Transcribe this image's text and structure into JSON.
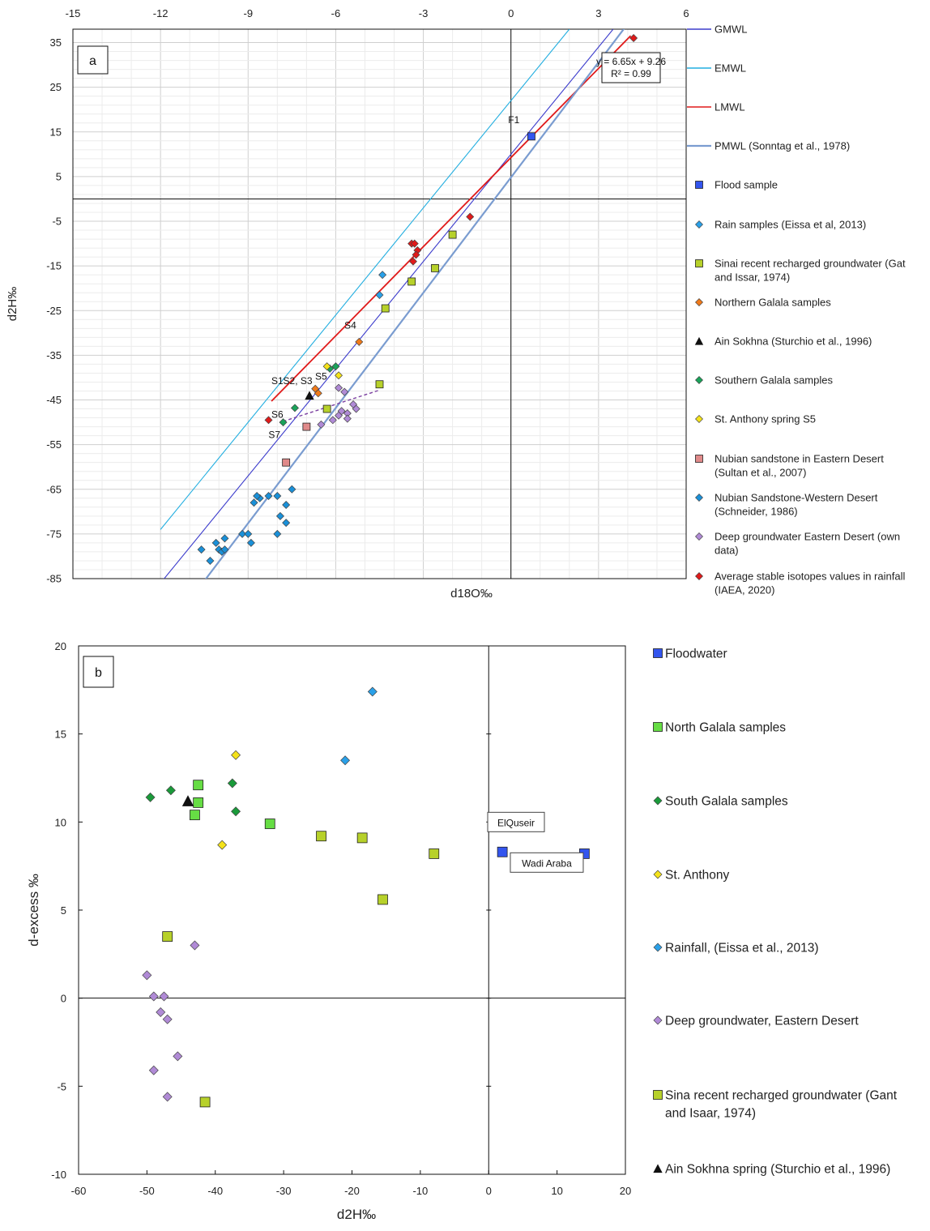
{
  "chart_data": [
    {
      "type": "scatter",
      "panel_label": "a",
      "xlabel": "d18O‰",
      "ylabel": "d2H‰",
      "xlim": [
        -15,
        6
      ],
      "ylim": [
        -85,
        38
      ],
      "x_ticks": [
        -15,
        -12,
        -9,
        -6,
        -3,
        0,
        3,
        6
      ],
      "y_ticks": [
        35,
        25,
        15,
        5,
        -5,
        -15,
        -25,
        -35,
        -45,
        -55,
        -65,
        -75,
        -85
      ],
      "grid": true,
      "x_tick_position": "top",
      "legend_position": "right",
      "equation": {
        "line1": "y = 6.65x + 9.26",
        "line2": "R² = 0.99"
      },
      "lines": [
        {
          "name": "GMWL",
          "color": "#3b3bcc",
          "slope": 8,
          "intercept": 10,
          "x": [
            -12.0,
            3.5
          ]
        },
        {
          "name": "EMWL",
          "color": "#22aee0",
          "slope": 8,
          "intercept": 22,
          "x": [
            -12.0,
            2.0
          ]
        },
        {
          "name": "LMWL",
          "color": "#e01a1a",
          "slope": 6.65,
          "intercept": 9.26,
          "x": [
            -8.2,
            4.1
          ]
        },
        {
          "name": "PMWL (Sonntag et al., 1978)",
          "color": "#7a9cd0",
          "slope": 8.6,
          "intercept": 4.8,
          "x": [
            -11.0,
            3.9
          ]
        }
      ],
      "trend_dashed": {
        "color": "#7b3fa0",
        "points": [
          [
            -7.8,
            -49.8
          ],
          [
            -4.5,
            -42.8
          ]
        ]
      },
      "series": [
        {
          "name": "Flood sample",
          "marker": "square",
          "color": "#3355ee",
          "points": [
            [
              0.7,
              14
            ]
          ]
        },
        {
          "name": "Rain samples (Eissa et al, 2013)",
          "marker": "diamond",
          "color": "#2aa0e8",
          "points": [
            [
              -4.4,
              -17
            ],
            [
              -4.5,
              -21.5
            ]
          ]
        },
        {
          "name": "Sinai recent recharged groundwater (Gat and Issar, 1974)",
          "marker": "square",
          "color": "#b7d12a",
          "points": [
            [
              -2.0,
              -8
            ],
            [
              -2.6,
              -15.5
            ],
            [
              -3.4,
              -18.5
            ],
            [
              -4.3,
              -24.5
            ],
            [
              -4.5,
              -41.5
            ],
            [
              -6.3,
              -47
            ]
          ]
        },
        {
          "name": "Northern Galala samples",
          "marker": "diamond",
          "color": "#f07a1a",
          "points": [
            [
              -5.2,
              -32
            ],
            [
              -6.7,
              -42.5
            ],
            [
              -6.6,
              -43.5
            ]
          ]
        },
        {
          "name": "Ain Sokhna (Sturchio et al., 1996)",
          "marker": "triangle",
          "color": "#111111",
          "points": [
            [
              -6.9,
              -44
            ]
          ]
        },
        {
          "name": "Southern Galala samples",
          "marker": "diamond",
          "color": "#1aa35a",
          "points": [
            [
              -6.0,
              -37.5
            ],
            [
              -6.2,
              -38
            ],
            [
              -7.4,
              -46.8
            ],
            [
              -7.8,
              -50
            ]
          ]
        },
        {
          "name": "St. Anthony spring S5",
          "marker": "diamond",
          "color": "#f4e21a",
          "points": [
            [
              -6.3,
              -37.5
            ],
            [
              -5.9,
              -39.5
            ]
          ]
        },
        {
          "name": "Nubian sandstone in Eastern Desert (Sultan et al., 2007)",
          "marker": "square",
          "color": "#e08a8a",
          "points": [
            [
              -7.0,
              -51
            ],
            [
              -7.7,
              -59
            ]
          ]
        },
        {
          "name": "Nubian Sandstone-Western Desert (Schneider, 1986)",
          "marker": "diamond",
          "color": "#1a90d8",
          "points": [
            [
              -8.6,
              -67
            ],
            [
              -8.3,
              -66.5
            ],
            [
              -8.0,
              -66.5
            ],
            [
              -7.5,
              -65
            ],
            [
              -7.7,
              -68.5
            ],
            [
              -7.9,
              -71
            ],
            [
              -7.7,
              -72.5
            ],
            [
              -8.0,
              -75
            ],
            [
              -8.7,
              -66.5
            ],
            [
              -8.8,
              -68
            ],
            [
              -9.2,
              -75
            ],
            [
              -9.0,
              -75
            ],
            [
              -8.9,
              -77
            ],
            [
              -9.8,
              -76
            ],
            [
              -10.1,
              -77
            ],
            [
              -10.0,
              -78.5
            ],
            [
              -9.9,
              -79
            ],
            [
              -9.8,
              -78.5
            ],
            [
              -10.3,
              -81
            ],
            [
              -10.6,
              -78.5
            ]
          ]
        },
        {
          "name": "Deep groundwater Eastern Desert (own data)",
          "marker": "diamond",
          "color": "#b08ad6",
          "points": [
            [
              -5.9,
              -42.3
            ],
            [
              -5.7,
              -43.2
            ],
            [
              -5.4,
              -46
            ],
            [
              -5.3,
              -47
            ],
            [
              -5.8,
              -47.5
            ],
            [
              -5.6,
              -48
            ],
            [
              -5.9,
              -48.5
            ],
            [
              -6.1,
              -49.5
            ],
            [
              -5.6,
              -49.2
            ],
            [
              -6.5,
              -50.5
            ]
          ]
        },
        {
          "name": "Average stable isotopes values in rainfall (IAEA, 2020)",
          "marker": "diamond",
          "color": "#e01a1a",
          "points": [
            [
              4.2,
              36
            ],
            [
              -1.4,
              -4
            ],
            [
              -3.4,
              -10
            ],
            [
              -3.3,
              -10
            ],
            [
              -3.2,
              -11.5
            ],
            [
              -3.25,
              -12.5
            ],
            [
              -3.35,
              -14
            ],
            [
              -8.3,
              -49.5
            ]
          ]
        }
      ],
      "annotations": [
        {
          "text": "F1",
          "x": 0.1,
          "y": 17
        },
        {
          "text": "S4",
          "x": -5.5,
          "y": -29
        },
        {
          "text": "S5",
          "x": -6.5,
          "y": -40.5
        },
        {
          "text": "S1",
          "x": -8.0,
          "y": -41.5
        },
        {
          "text": "S2, S3",
          "x": -7.3,
          "y": -41.5
        },
        {
          "text": "S6",
          "x": -8.0,
          "y": -49
        },
        {
          "text": "S7",
          "x": -8.1,
          "y": -53.5
        }
      ]
    },
    {
      "type": "scatter",
      "panel_label": "b",
      "xlabel": "d2H‰",
      "ylabel": "d-excess ‰",
      "xlim": [
        -60,
        20
      ],
      "ylim": [
        -10,
        20
      ],
      "x_ticks": [
        -60,
        -50,
        -40,
        -30,
        -20,
        -10,
        0,
        10,
        20
      ],
      "y_ticks": [
        20,
        15,
        10,
        5,
        0,
        -5,
        -10
      ],
      "grid": false,
      "legend_position": "right",
      "series": [
        {
          "name": "Floodwater",
          "marker": "square",
          "color": "#3355ee",
          "points": [
            [
              2,
              8.3
            ],
            [
              14,
              8.2
            ]
          ]
        },
        {
          "name": "North Galala samples",
          "marker": "square",
          "color": "#66dd44",
          "points": [
            [
              -42.5,
              12.1
            ],
            [
              -42.5,
              11.1
            ],
            [
              -43,
              10.4
            ],
            [
              -32,
              9.9
            ]
          ]
        },
        {
          "name": "South Galala samples",
          "marker": "diamond",
          "color": "#1a9a3a",
          "points": [
            [
              -49.5,
              11.4
            ],
            [
              -46.5,
              11.8
            ],
            [
              -37.5,
              12.2
            ],
            [
              -37,
              10.6
            ]
          ]
        },
        {
          "name": "St. Anthony",
          "marker": "diamond",
          "color": "#f4e21a",
          "points": [
            [
              -37,
              13.8
            ],
            [
              -39,
              8.7
            ]
          ]
        },
        {
          "name": "Rainfall, (Eissa et al., 2013)",
          "marker": "diamond",
          "color": "#2aa0e8",
          "points": [
            [
              -17,
              17.4
            ],
            [
              -21,
              13.5
            ]
          ]
        },
        {
          "name": "Deep groundwater, Eastern Desert",
          "marker": "diamond",
          "color": "#b08ad6",
          "points": [
            [
              -50,
              1.3
            ],
            [
              -49,
              0.1
            ],
            [
              -47.5,
              0.1
            ],
            [
              -48,
              -0.8
            ],
            [
              -47,
              -1.2
            ],
            [
              -43,
              3.0
            ],
            [
              -45.5,
              -3.3
            ],
            [
              -49,
              -4.1
            ],
            [
              -47,
              -5.6
            ]
          ]
        },
        {
          "name": "Sina recent recharged groundwater (Gant and Isaar, 1974)",
          "marker": "square",
          "color": "#b7d12a",
          "points": [
            [
              -24.5,
              9.2
            ],
            [
              -18.5,
              9.1
            ],
            [
              -8,
              8.2
            ],
            [
              -15.5,
              5.6
            ],
            [
              -47,
              3.5
            ],
            [
              -41.5,
              -5.9
            ]
          ]
        },
        {
          "name": "Ain Sokhna spring (Sturchio et al., 1996)",
          "marker": "triangle",
          "color": "#111111",
          "points": [
            [
              -44,
              11.2
            ]
          ]
        }
      ],
      "annotations": [
        {
          "text": "ElQuseir",
          "x": 4,
          "y": 10
        },
        {
          "text": "Wadi Araba",
          "x": 8.5,
          "y": 7.7
        }
      ]
    }
  ]
}
